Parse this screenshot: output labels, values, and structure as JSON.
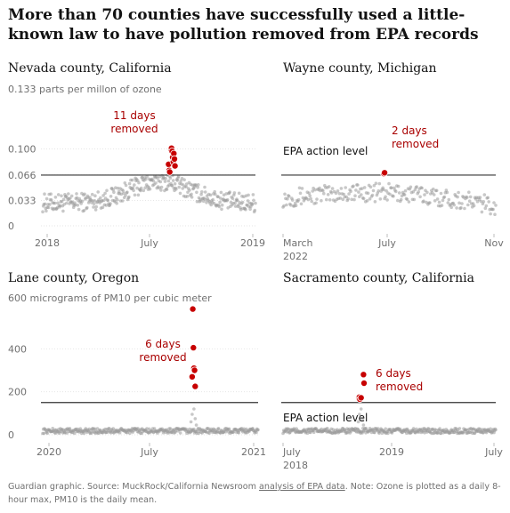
{
  "headline": "More than 70 counties have successfully used a little-known law to have pollution removed from EPA records",
  "colors": {
    "dot": "#9a9a9a",
    "removed": "#c70000",
    "annotation": "#a90000",
    "action_line": "#333333"
  },
  "chart_data": [
    {
      "type": "scatter",
      "title": "Nevada county, California",
      "unit_label": "0.133 parts per millon of ozone",
      "y_ticks": [
        "0.100",
        "0.066",
        "0.033",
        "0"
      ],
      "y_tick_values": [
        0.1,
        0.066,
        0.033,
        0
      ],
      "x_ticks": [
        "2018",
        "July",
        "2019"
      ],
      "x_range": [
        "2018-01-01",
        "2019-01-01"
      ],
      "ylim": [
        0,
        0.133
      ],
      "action_level": 0.066,
      "action_label": "",
      "annotation": {
        "line1": "11 days",
        "line2": "removed"
      },
      "removed_points": [
        {
          "x": "2018-08-05",
          "y": 0.08
        },
        {
          "x": "2018-08-06",
          "y": 0.072
        },
        {
          "x": "2018-08-07",
          "y": 0.07
        },
        {
          "x": "2018-08-09",
          "y": 0.099
        },
        {
          "x": "2018-08-10",
          "y": 0.101
        },
        {
          "x": "2018-08-11",
          "y": 0.097
        },
        {
          "x": "2018-08-12",
          "y": 0.089
        },
        {
          "x": "2018-08-13",
          "y": 0.083
        },
        {
          "x": "2018-08-14",
          "y": 0.094
        },
        {
          "x": "2018-08-15",
          "y": 0.087
        },
        {
          "x": "2018-08-16",
          "y": 0.078
        }
      ]
    },
    {
      "type": "scatter",
      "title": "Wayne county, Michigan",
      "unit_label": "",
      "y_ticks": [],
      "y_tick_values": [],
      "x_ticks": [
        "March\n2022",
        "July",
        "Nov"
      ],
      "x_range": [
        "2022-03-01",
        "2022-11-01"
      ],
      "ylim": [
        0,
        0.133
      ],
      "action_level": 0.066,
      "action_label": "EPA action level",
      "annotation": {
        "line1": "2 days",
        "line2": "removed"
      },
      "removed_points": [
        {
          "x": "2022-06-25",
          "y": 0.068
        },
        {
          "x": "2022-06-26",
          "y": 0.069
        }
      ]
    },
    {
      "type": "scatter",
      "title": "Lane county, Oregon",
      "unit_label": "600 micrograms of PM10 per cubic meter",
      "y_ticks": [
        "400",
        "200",
        "0"
      ],
      "y_tick_values": [
        400,
        200,
        0
      ],
      "x_ticks": [
        "2020",
        "July",
        "2021"
      ],
      "x_range": [
        "2020-01-01",
        "2021-01-01"
      ],
      "ylim": [
        0,
        600
      ],
      "action_level": 150,
      "action_label": "",
      "annotation": {
        "line1": "6 days",
        "line2": "removed"
      },
      "removed_points": [
        {
          "x": "2020-09-12",
          "y": 585
        },
        {
          "x": "2020-09-13",
          "y": 405
        },
        {
          "x": "2020-09-14",
          "y": 310
        },
        {
          "x": "2020-09-15",
          "y": 300
        },
        {
          "x": "2020-09-11",
          "y": 270
        },
        {
          "x": "2020-09-16",
          "y": 225
        }
      ]
    },
    {
      "type": "scatter",
      "title": "Sacramento county, California",
      "unit_label": "",
      "y_ticks": [],
      "y_tick_values": [],
      "x_ticks": [
        "July\n2018",
        "2019",
        "July"
      ],
      "x_range": [
        "2018-07-01",
        "2019-07-01"
      ],
      "ylim": [
        0,
        600
      ],
      "action_level": 150,
      "action_label": "EPA action level",
      "annotation": {
        "line1": "6 days",
        "line2": "removed"
      },
      "removed_points": [
        {
          "x": "2018-11-08",
          "y": 170
        },
        {
          "x": "2018-11-09",
          "y": 175
        },
        {
          "x": "2018-11-10",
          "y": 165
        },
        {
          "x": "2018-11-16",
          "y": 280
        },
        {
          "x": "2018-11-17",
          "y": 240
        },
        {
          "x": "2018-11-12",
          "y": 172
        }
      ]
    }
  ],
  "footer": {
    "prefix": "Guardian graphic. Source: MuckRock/California Newsroom ",
    "link": "analysis of EPA data",
    "suffix": ". Note: Ozone is plotted as a daily 8-hour max, PM10 is the daily mean."
  }
}
